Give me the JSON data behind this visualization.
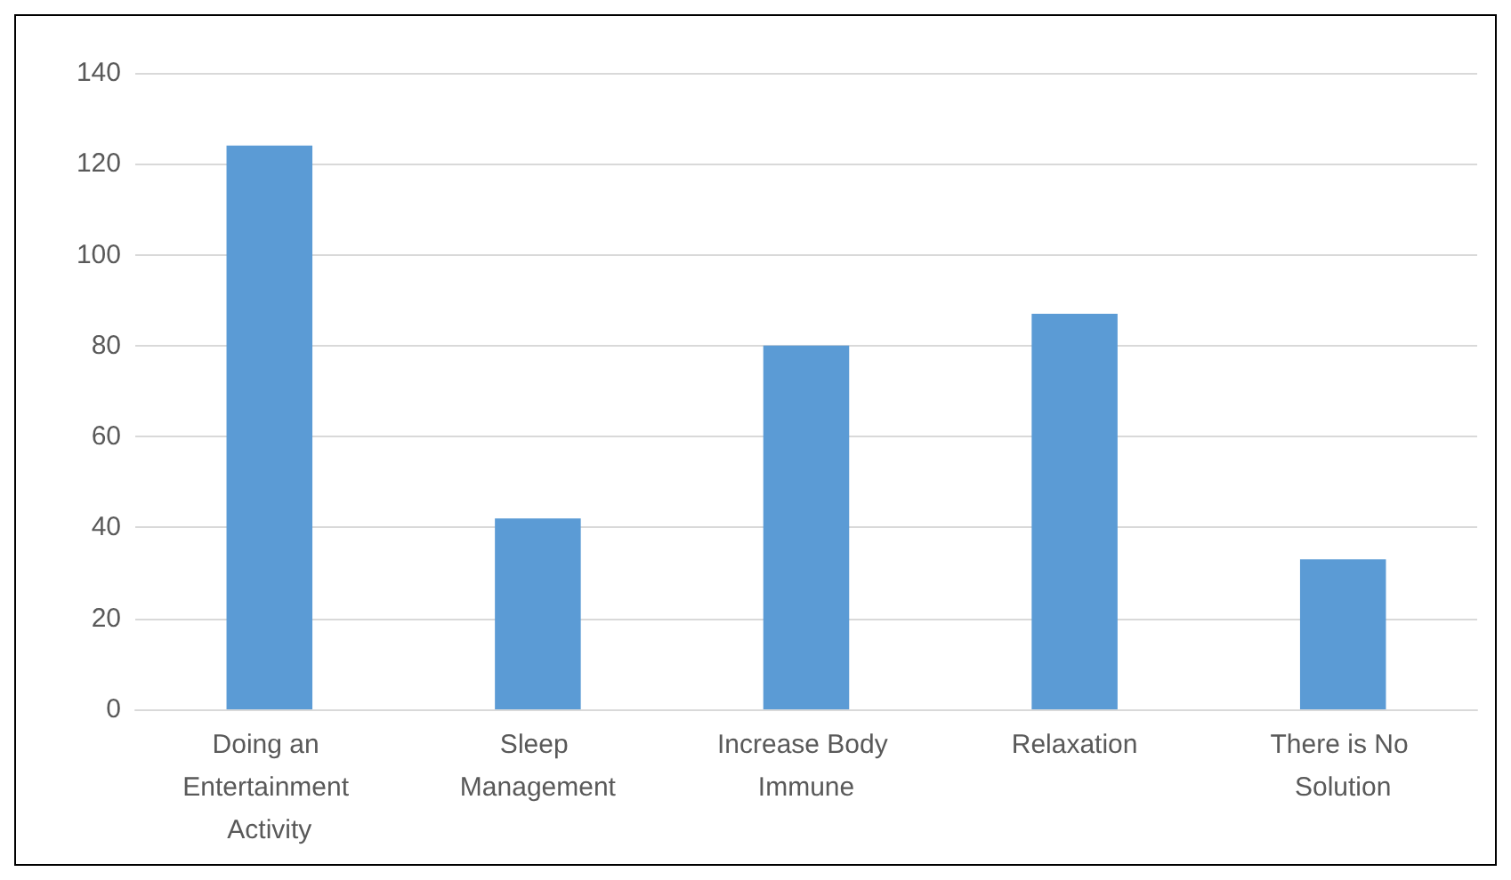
{
  "chart_data": {
    "type": "bar",
    "categories": [
      "Doing an Entertainment Activity",
      "Sleep Management",
      "Increase Body Immune",
      "Relaxation",
      "There is No Solution"
    ],
    "values": [
      124,
      42,
      80,
      87,
      33
    ],
    "color": "#5b9bd5",
    "ylim": [
      0,
      140
    ],
    "yticks": [
      0,
      20,
      40,
      60,
      80,
      100,
      120,
      140
    ],
    "grid": "y"
  }
}
